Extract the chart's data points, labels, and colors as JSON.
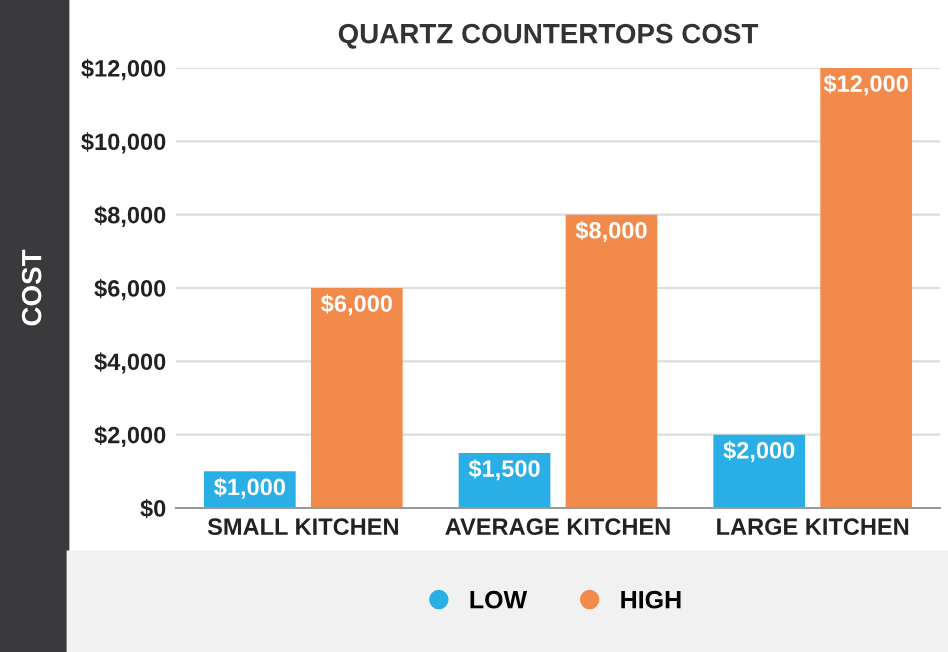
{
  "chart_data": {
    "type": "bar",
    "title": "QUARTZ COUNTERTOPS COST",
    "ylabel": "COST",
    "categories": [
      "SMALL KITCHEN",
      "AVERAGE KITCHEN",
      "LARGE KITCHEN"
    ],
    "series": [
      {
        "name": "LOW",
        "color": "#2aaee6",
        "values": [
          1000,
          1500,
          2000
        ],
        "value_labels": [
          "$1,000",
          "$1,500",
          "$2,000"
        ]
      },
      {
        "name": "HIGH",
        "color": "#f28a4c",
        "values": [
          6000,
          8000,
          12000
        ],
        "value_labels": [
          "$6,000",
          "$8,000",
          "$12,000"
        ]
      }
    ],
    "ylim": [
      0,
      12000
    ],
    "yticks": [
      {
        "value": 0,
        "label": "$0"
      },
      {
        "value": 2000,
        "label": "$2,000"
      },
      {
        "value": 4000,
        "label": "$4,000"
      },
      {
        "value": 6000,
        "label": "$6,000"
      },
      {
        "value": 8000,
        "label": "$8,000"
      },
      {
        "value": 10000,
        "label": "$10,000"
      },
      {
        "value": 12000,
        "label": "$12,000"
      }
    ],
    "grid": "y",
    "legend": "bottom",
    "marker": "circle"
  }
}
